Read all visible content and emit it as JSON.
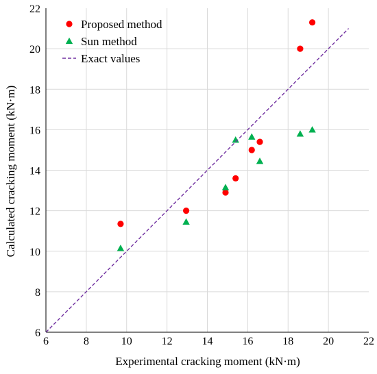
{
  "chart_data": {
    "type": "scatter",
    "xlabel": "Experimental cracking moment (kN·m)",
    "ylabel": "Calculated cracking moment (kN·m)",
    "xlim": [
      6,
      22
    ],
    "ylim": [
      6,
      22
    ],
    "xticks": [
      "6",
      "8",
      "10",
      "12",
      "14",
      "16",
      "18",
      "20",
      "22"
    ],
    "yticks": [
      "6",
      "8",
      "10",
      "12",
      "14",
      "16",
      "18",
      "20",
      "22"
    ],
    "grid": true,
    "legend_position": "top-left",
    "series": [
      {
        "name": "Proposed method",
        "marker": "circle",
        "color": "#ff0000",
        "points": [
          {
            "x": 9.7,
            "y": 11.35
          },
          {
            "x": 12.95,
            "y": 12.0
          },
          {
            "x": 14.9,
            "y": 12.9
          },
          {
            "x": 15.4,
            "y": 13.6
          },
          {
            "x": 16.2,
            "y": 15.0
          },
          {
            "x": 16.6,
            "y": 15.4
          },
          {
            "x": 18.6,
            "y": 20.0
          },
          {
            "x": 19.2,
            "y": 21.3
          }
        ]
      },
      {
        "name": "Sun method",
        "marker": "triangle",
        "color": "#00b050",
        "points": [
          {
            "x": 9.7,
            "y": 10.15
          },
          {
            "x": 12.95,
            "y": 11.45
          },
          {
            "x": 14.9,
            "y": 13.15
          },
          {
            "x": 15.4,
            "y": 15.5
          },
          {
            "x": 16.2,
            "y": 15.65
          },
          {
            "x": 16.6,
            "y": 14.45
          },
          {
            "x": 18.6,
            "y": 15.8
          },
          {
            "x": 19.2,
            "y": 16.0
          }
        ]
      },
      {
        "name": "Exact values",
        "marker": "dashed-line",
        "color": "#7030a0",
        "points": [
          {
            "x": 6,
            "y": 6
          },
          {
            "x": 21,
            "y": 21
          }
        ]
      }
    ]
  }
}
